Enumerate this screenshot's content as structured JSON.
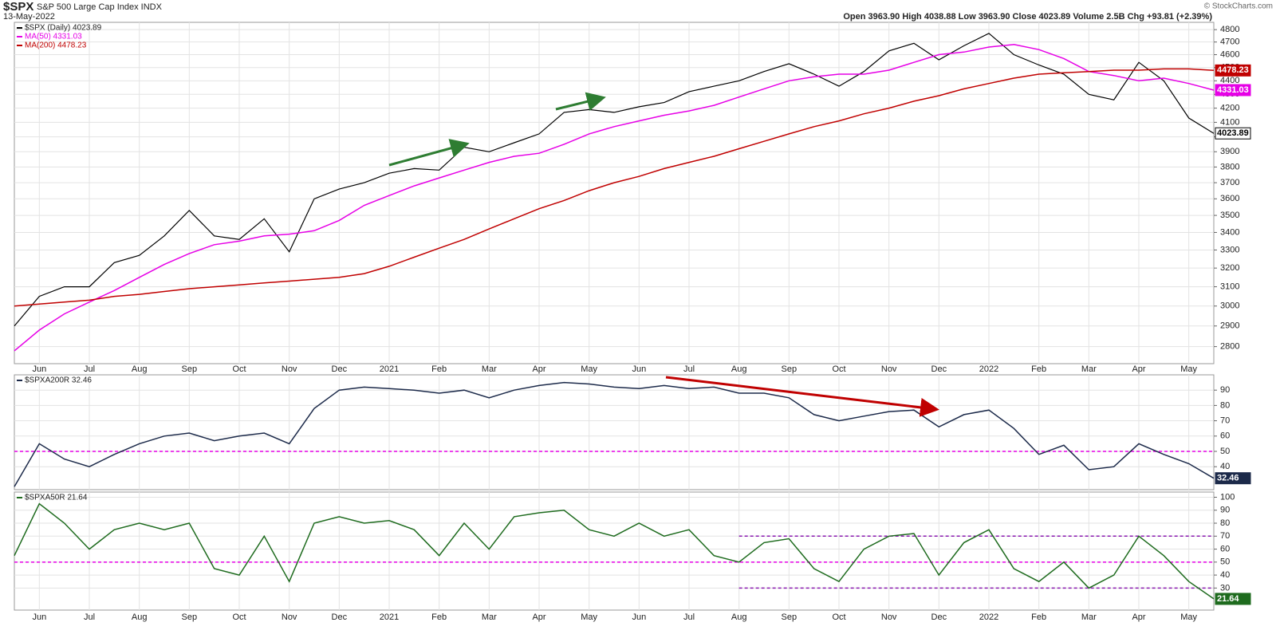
{
  "header": {
    "symbol": "$SPX",
    "name": "S&P 500 Large Cap Index INDX",
    "date": "13-May-2022",
    "quote": "Open 3963.90  High 4038.88  Low 3963.90  Close 4023.89  Volume 2.5B  Chg +93.81 (+2.39%)",
    "copyright": "© StockCharts.com"
  },
  "chart_data": [
    {
      "type": "line",
      "log_scale": true,
      "grid": true,
      "categories": [
        null,
        "Jun",
        null,
        "Jul",
        null,
        "Aug",
        null,
        "Sep",
        null,
        "Oct",
        null,
        "Nov",
        null,
        "Dec",
        null,
        "2021",
        null,
        "Feb",
        null,
        "Mar",
        null,
        "Apr",
        null,
        "May",
        null,
        "Jun",
        null,
        "Jul",
        null,
        "Aug",
        null,
        "Sep",
        null,
        "Oct",
        null,
        "Nov",
        null,
        "Dec",
        null,
        "2022",
        null,
        "Feb",
        null,
        "Mar",
        null,
        "Apr",
        null,
        "May",
        null
      ],
      "ylim": [
        2720,
        4860
      ],
      "yticks": [
        2800,
        2900,
        3000,
        3100,
        3200,
        3300,
        3400,
        3500,
        3600,
        3700,
        3800,
        3900,
        4000,
        4100,
        4200,
        4300,
        4400,
        4500,
        4600,
        4700,
        4800
      ],
      "series": [
        {
          "name": "$SPX (Daily) 4023.89",
          "color": "#000000",
          "values": [
            2900,
            3050,
            3100,
            3100,
            3230,
            3270,
            3380,
            3530,
            3380,
            3360,
            3480,
            3290,
            3600,
            3660,
            3700,
            3760,
            3790,
            3780,
            3930,
            3900,
            3960,
            4020,
            4170,
            4190,
            4170,
            4210,
            4240,
            4320,
            4360,
            4400,
            4470,
            4530,
            4450,
            4360,
            4470,
            4630,
            4690,
            4560,
            4670,
            4770,
            4600,
            4520,
            4450,
            4300,
            4260,
            4540,
            4400,
            4130,
            4023.89
          ]
        },
        {
          "name": "MA(50) 4331.03",
          "color": "#e600e6",
          "values": [
            2780,
            2880,
            2960,
            3020,
            3080,
            3150,
            3220,
            3280,
            3330,
            3350,
            3380,
            3390,
            3410,
            3470,
            3560,
            3620,
            3680,
            3730,
            3780,
            3830,
            3870,
            3890,
            3950,
            4020,
            4070,
            4110,
            4150,
            4180,
            4220,
            4280,
            4340,
            4400,
            4430,
            4450,
            4450,
            4480,
            4540,
            4600,
            4620,
            4660,
            4680,
            4640,
            4570,
            4470,
            4440,
            4400,
            4420,
            4380,
            4331.03
          ]
        },
        {
          "name": "MA(200) 4478.23",
          "color": "#c00000",
          "values": [
            3000,
            3010,
            3020,
            3030,
            3050,
            3060,
            3075,
            3090,
            3100,
            3110,
            3120,
            3130,
            3140,
            3150,
            3170,
            3210,
            3260,
            3310,
            3360,
            3420,
            3480,
            3540,
            3590,
            3650,
            3700,
            3740,
            3790,
            3830,
            3870,
            3920,
            3970,
            4020,
            4070,
            4110,
            4160,
            4200,
            4250,
            4290,
            4340,
            4380,
            4420,
            4450,
            4460,
            4470,
            4480,
            4480,
            4490,
            4490,
            4478.23
          ]
        }
      ]
    },
    {
      "type": "line",
      "grid": true,
      "ylim": [
        25,
        100
      ],
      "yticks": [
        40,
        50,
        60,
        70,
        80,
        90
      ],
      "hlines": [
        {
          "value": 50,
          "color": "#e600e6"
        }
      ],
      "series": [
        {
          "name": "$SPXA200R 32.46",
          "color": "#1c2a4a",
          "values": [
            27,
            55,
            45,
            40,
            48,
            55,
            60,
            62,
            57,
            60,
            62,
            55,
            78,
            90,
            92,
            91,
            90,
            88,
            90,
            85,
            90,
            93,
            95,
            94,
            92,
            91,
            93,
            91,
            92,
            88,
            88,
            85,
            74,
            70,
            73,
            76,
            77,
            66,
            74,
            77,
            65,
            48,
            54,
            38,
            40,
            55,
            48,
            42,
            32.46
          ]
        }
      ]
    },
    {
      "type": "line",
      "grid": true,
      "ylim": [
        13,
        104
      ],
      "yticks": [
        30,
        40,
        50,
        60,
        70,
        80,
        90,
        100
      ],
      "categories": [
        null,
        "Jun",
        null,
        "Jul",
        null,
        "Aug",
        null,
        "Sep",
        null,
        "Oct",
        null,
        "Nov",
        null,
        "Dec",
        null,
        "2021",
        null,
        "Feb",
        null,
        "Mar",
        null,
        "Apr",
        null,
        "May",
        null,
        "Jun",
        null,
        "Jul",
        null,
        "Aug",
        null,
        "Sep",
        null,
        "Oct",
        null,
        "Nov",
        null,
        "Dec",
        null,
        "2022",
        null,
        "Feb",
        null,
        "Mar",
        null,
        "Apr",
        null,
        "May",
        null
      ],
      "hlines": [
        {
          "value": 50,
          "color": "#e600e6"
        },
        {
          "value": 30,
          "color": "#8a1ab0",
          "start": 29
        },
        {
          "value": 70,
          "color": "#8a1ab0",
          "start": 29
        }
      ],
      "series": [
        {
          "name": "$SPXA50R 21.64",
          "color": "#1e6b1e",
          "values": [
            55,
            95,
            80,
            60,
            75,
            80,
            75,
            80,
            45,
            40,
            70,
            35,
            80,
            85,
            80,
            82,
            75,
            55,
            80,
            60,
            85,
            88,
            90,
            75,
            70,
            80,
            70,
            75,
            55,
            50,
            65,
            68,
            45,
            35,
            60,
            70,
            72,
            40,
            65,
            75,
            45,
            35,
            50,
            30,
            40,
            70,
            55,
            35,
            21.64
          ]
        }
      ]
    }
  ]
}
